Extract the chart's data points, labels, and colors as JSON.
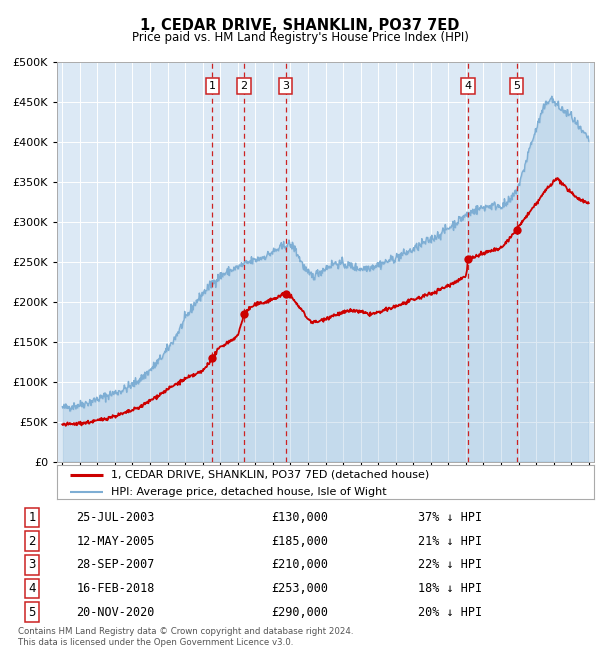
{
  "title": "1, CEDAR DRIVE, SHANKLIN, PO37 7ED",
  "subtitle": "Price paid vs. HM Land Registry's House Price Index (HPI)",
  "plot_bg_color": "#dce9f5",
  "ylim": [
    0,
    500000
  ],
  "xlim_start": 1994.7,
  "xlim_end": 2025.3,
  "yticks": [
    0,
    50000,
    100000,
    150000,
    200000,
    250000,
    300000,
    350000,
    400000,
    450000,
    500000
  ],
  "ytick_labels": [
    "£0",
    "£50K",
    "£100K",
    "£150K",
    "£200K",
    "£250K",
    "£300K",
    "£350K",
    "£400K",
    "£450K",
    "£500K"
  ],
  "sales": [
    {
      "num": 1,
      "year": 2003.56,
      "price": 130000
    },
    {
      "num": 2,
      "year": 2005.36,
      "price": 185000
    },
    {
      "num": 3,
      "year": 2007.74,
      "price": 210000
    },
    {
      "num": 4,
      "year": 2018.12,
      "price": 253000
    },
    {
      "num": 5,
      "year": 2020.89,
      "price": 290000
    }
  ],
  "hpi_color": "#7eaed4",
  "sale_color": "#cc0000",
  "legend_label_sale": "1, CEDAR DRIVE, SHANKLIN, PO37 7ED (detached house)",
  "legend_label_hpi": "HPI: Average price, detached house, Isle of Wight",
  "footer": "Contains HM Land Registry data © Crown copyright and database right 2024.\nThis data is licensed under the Open Government Licence v3.0.",
  "table_rows": [
    [
      "1",
      "25-JUL-2003",
      "£130,000",
      "37% ↓ HPI"
    ],
    [
      "2",
      "12-MAY-2005",
      "£185,000",
      "21% ↓ HPI"
    ],
    [
      "3",
      "28-SEP-2007",
      "£210,000",
      "22% ↓ HPI"
    ],
    [
      "4",
      "16-FEB-2018",
      "£253,000",
      "18% ↓ HPI"
    ],
    [
      "5",
      "20-NOV-2020",
      "£290,000",
      "20% ↓ HPI"
    ]
  ],
  "hpi_anchors": [
    [
      1995.0,
      67000
    ],
    [
      1995.5,
      68500
    ],
    [
      1996.0,
      71000
    ],
    [
      1996.5,
      74000
    ],
    [
      1997.0,
      78000
    ],
    [
      1997.5,
      82000
    ],
    [
      1998.0,
      86000
    ],
    [
      1998.5,
      90000
    ],
    [
      1999.0,
      96000
    ],
    [
      1999.5,
      104000
    ],
    [
      2000.0,
      114000
    ],
    [
      2000.5,
      126000
    ],
    [
      2001.0,
      140000
    ],
    [
      2001.5,
      158000
    ],
    [
      2002.0,
      178000
    ],
    [
      2002.5,
      196000
    ],
    [
      2003.0,
      210000
    ],
    [
      2003.5,
      222000
    ],
    [
      2004.0,
      232000
    ],
    [
      2004.5,
      238000
    ],
    [
      2005.0,
      243000
    ],
    [
      2005.5,
      248000
    ],
    [
      2006.0,
      252000
    ],
    [
      2006.5,
      256000
    ],
    [
      2007.0,
      262000
    ],
    [
      2007.5,
      268000
    ],
    [
      2007.9,
      272000
    ],
    [
      2008.2,
      268000
    ],
    [
      2008.5,
      255000
    ],
    [
      2008.8,
      242000
    ],
    [
      2009.0,
      235000
    ],
    [
      2009.3,
      232000
    ],
    [
      2009.6,
      236000
    ],
    [
      2010.0,
      242000
    ],
    [
      2010.5,
      248000
    ],
    [
      2011.0,
      247000
    ],
    [
      2011.5,
      244000
    ],
    [
      2012.0,
      241000
    ],
    [
      2012.5,
      243000
    ],
    [
      2013.0,
      246000
    ],
    [
      2013.5,
      250000
    ],
    [
      2014.0,
      255000
    ],
    [
      2014.5,
      260000
    ],
    [
      2015.0,
      265000
    ],
    [
      2015.5,
      272000
    ],
    [
      2016.0,
      278000
    ],
    [
      2016.5,
      284000
    ],
    [
      2017.0,
      292000
    ],
    [
      2017.5,
      300000
    ],
    [
      2018.0,
      308000
    ],
    [
      2018.5,
      314000
    ],
    [
      2019.0,
      318000
    ],
    [
      2019.5,
      320000
    ],
    [
      2020.0,
      320000
    ],
    [
      2020.3,
      322000
    ],
    [
      2020.6,
      328000
    ],
    [
      2021.0,
      345000
    ],
    [
      2021.3,
      365000
    ],
    [
      2021.6,
      390000
    ],
    [
      2022.0,
      415000
    ],
    [
      2022.3,
      435000
    ],
    [
      2022.6,
      448000
    ],
    [
      2022.8,
      455000
    ],
    [
      2023.0,
      450000
    ],
    [
      2023.3,
      443000
    ],
    [
      2023.6,
      438000
    ],
    [
      2024.0,
      432000
    ],
    [
      2024.5,
      415000
    ],
    [
      2025.0,
      403000
    ]
  ],
  "sale_anchors": [
    [
      1995.0,
      46000
    ],
    [
      1995.5,
      46500
    ],
    [
      1996.0,
      47500
    ],
    [
      1996.5,
      49000
    ],
    [
      1997.0,
      51000
    ],
    [
      1997.5,
      54000
    ],
    [
      1998.0,
      57000
    ],
    [
      1998.5,
      60000
    ],
    [
      1999.0,
      64000
    ],
    [
      1999.5,
      69000
    ],
    [
      2000.0,
      76000
    ],
    [
      2000.5,
      83000
    ],
    [
      2001.0,
      90000
    ],
    [
      2001.5,
      97000
    ],
    [
      2002.0,
      103000
    ],
    [
      2002.5,
      108000
    ],
    [
      2003.0,
      113000
    ],
    [
      2003.56,
      130000
    ],
    [
      2004.0,
      143000
    ],
    [
      2004.5,
      150000
    ],
    [
      2005.0,
      157000
    ],
    [
      2005.36,
      185000
    ],
    [
      2005.7,
      192000
    ],
    [
      2006.0,
      196000
    ],
    [
      2006.5,
      199000
    ],
    [
      2007.0,
      203000
    ],
    [
      2007.74,
      210000
    ],
    [
      2008.0,
      207000
    ],
    [
      2008.4,
      196000
    ],
    [
      2008.8,
      185000
    ],
    [
      2009.0,
      178000
    ],
    [
      2009.3,
      174000
    ],
    [
      2009.6,
      175000
    ],
    [
      2010.0,
      179000
    ],
    [
      2010.5,
      183000
    ],
    [
      2011.0,
      186000
    ],
    [
      2011.5,
      189000
    ],
    [
      2012.0,
      187000
    ],
    [
      2012.5,
      184000
    ],
    [
      2013.0,
      186000
    ],
    [
      2013.5,
      190000
    ],
    [
      2014.0,
      194000
    ],
    [
      2014.5,
      198000
    ],
    [
      2015.0,
      202000
    ],
    [
      2015.5,
      206000
    ],
    [
      2016.0,
      210000
    ],
    [
      2016.5,
      215000
    ],
    [
      2017.0,
      220000
    ],
    [
      2017.5,
      226000
    ],
    [
      2018.0,
      232000
    ],
    [
      2018.12,
      253000
    ],
    [
      2018.5,
      256000
    ],
    [
      2019.0,
      260000
    ],
    [
      2019.5,
      264000
    ],
    [
      2020.0,
      266000
    ],
    [
      2020.89,
      290000
    ],
    [
      2021.0,
      294000
    ],
    [
      2021.5,
      308000
    ],
    [
      2022.0,
      322000
    ],
    [
      2022.5,
      338000
    ],
    [
      2023.0,
      350000
    ],
    [
      2023.2,
      354000
    ],
    [
      2023.4,
      350000
    ],
    [
      2023.7,
      342000
    ],
    [
      2024.0,
      336000
    ],
    [
      2024.5,
      328000
    ],
    [
      2025.0,
      323000
    ]
  ]
}
